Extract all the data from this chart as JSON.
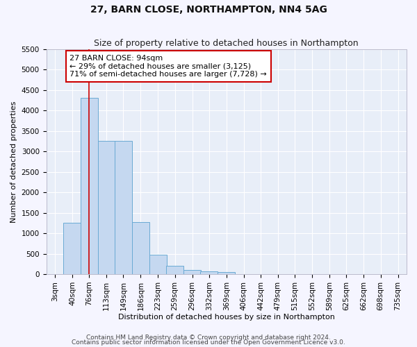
{
  "title": "27, BARN CLOSE, NORTHAMPTON, NN4 5AG",
  "subtitle": "Size of property relative to detached houses in Northampton",
  "xlabel": "Distribution of detached houses by size in Northampton",
  "ylabel": "Number of detached properties",
  "bin_edges": [
    3,
    40,
    76,
    113,
    149,
    186,
    223,
    259,
    296,
    332,
    369,
    406,
    442,
    479,
    515,
    552,
    589,
    625,
    662,
    698,
    735
  ],
  "bar_heights": [
    0,
    1250,
    4300,
    3250,
    3250,
    1275,
    475,
    200,
    100,
    75,
    60,
    0,
    0,
    0,
    0,
    0,
    0,
    0,
    0,
    0
  ],
  "bar_color": "#c5d8f0",
  "bar_edge_color": "#6aaad4",
  "background_color": "#e8eef8",
  "grid_color": "#ffffff",
  "fig_background": "#f5f5ff",
  "property_line_x": 94,
  "property_line_color": "#cc0000",
  "annotation_box_color": "#cc0000",
  "annotation_line1": "27 BARN CLOSE: 94sqm",
  "annotation_line2": "← 29% of detached houses are smaller (3,125)",
  "annotation_line3": "71% of semi-detached houses are larger (7,728) →",
  "ylim_max": 5500,
  "yticks": [
    0,
    500,
    1000,
    1500,
    2000,
    2500,
    3000,
    3500,
    4000,
    4500,
    5000,
    5500
  ],
  "footnote1": "Contains HM Land Registry data © Crown copyright and database right 2024.",
  "footnote2": "Contains public sector information licensed under the Open Government Licence v3.0.",
  "title_fontsize": 10,
  "subtitle_fontsize": 9,
  "label_fontsize": 8,
  "tick_fontsize": 7.5,
  "annotation_fontsize": 8,
  "footnote_fontsize": 6.5
}
